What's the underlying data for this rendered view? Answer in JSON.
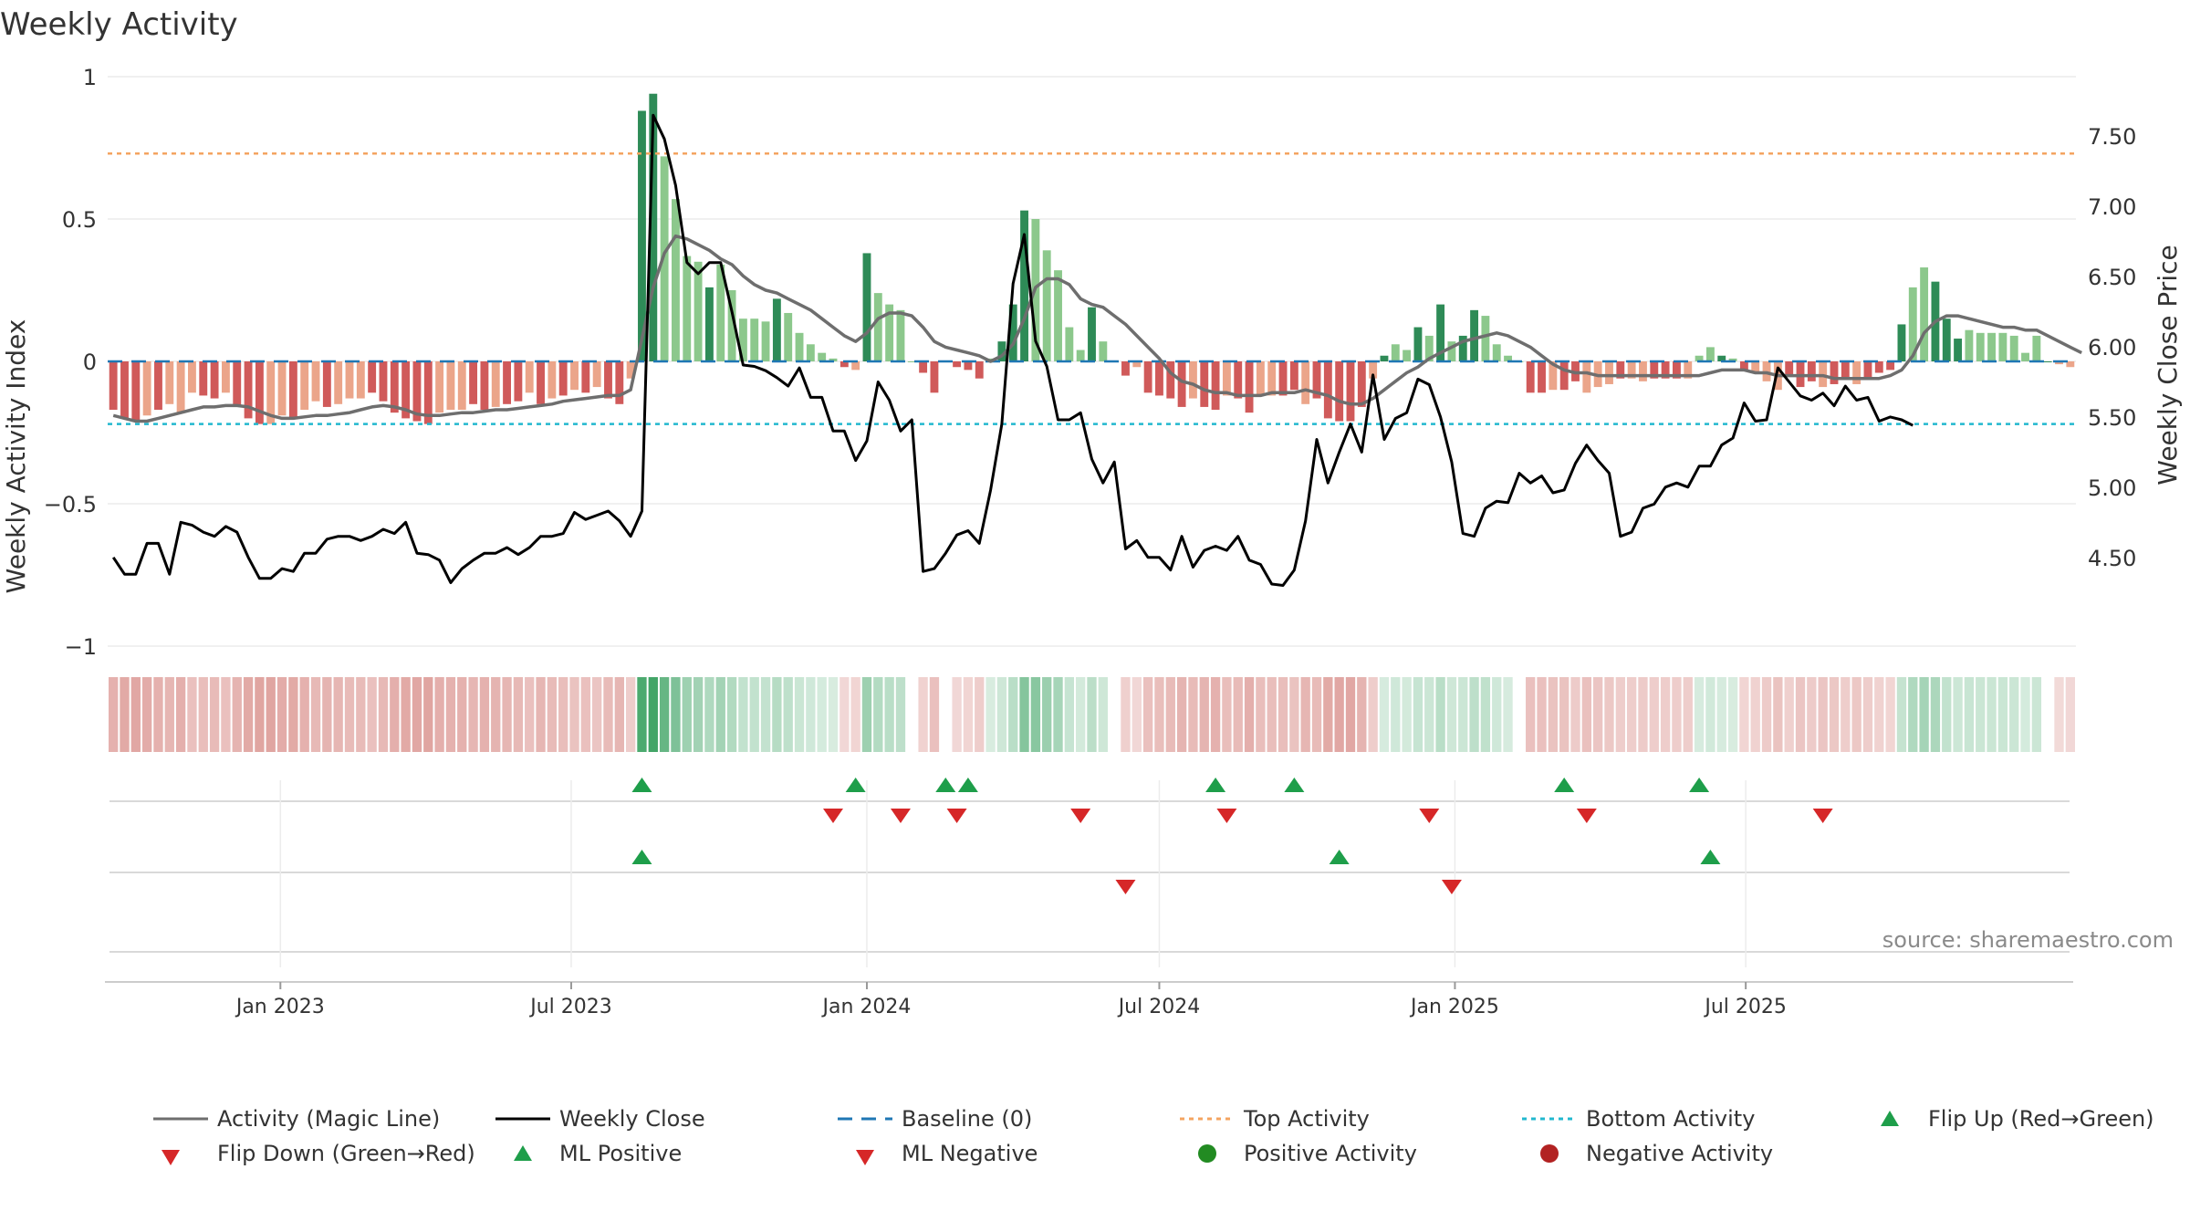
{
  "title": "Weekly Activity",
  "source": "source: sharemaestro.com",
  "colors": {
    "strong_green": "#2e8b57",
    "light_green": "#8cc88c",
    "strong_red": "#d05a5a",
    "light_red": "#eba58a",
    "magic_line": "#6e6e6e",
    "close_line": "#000000",
    "baseline": "#1f77b4",
    "top_line": "#f4a460",
    "bottom_line": "#22b8cf",
    "marker_up": "#1e9e4a",
    "marker_down": "#d62728"
  },
  "chart_data": {
    "type": "bar",
    "x_start": "2022-09-19",
    "x_step_days": 7,
    "left_axis": {
      "label": "Weekly Activity Index",
      "ylim": [
        -1,
        1
      ],
      "ticks": [
        "1",
        "0.5",
        "0",
        "−0.5",
        "−1"
      ],
      "tick_values": [
        1,
        0.5,
        0,
        -0.5,
        -1
      ]
    },
    "right_axis": {
      "label": "Weekly Close Price",
      "ylim": [
        4.05,
        7.95
      ],
      "ticks": [
        "7.50",
        "7.00",
        "6.50",
        "6.00",
        "5.50",
        "5.00",
        "4.50"
      ],
      "tick_values": [
        7.5,
        7.0,
        6.5,
        6.0,
        5.5,
        5.0,
        4.5
      ]
    },
    "x_ticks": {
      "labels": [
        "Jan 2023",
        "Jul 2023",
        "Jan 2024",
        "Jul 2024",
        "Jan 2025",
        "Jul 2025"
      ],
      "dates": [
        "2023-01-01",
        "2023-07-01",
        "2024-01-01",
        "2024-07-01",
        "2025-01-01",
        "2025-07-01"
      ]
    },
    "top_activity": 0.73,
    "bottom_activity": -0.22,
    "activity": [
      -0.17,
      -0.2,
      -0.21,
      -0.19,
      -0.17,
      -0.15,
      -0.18,
      -0.11,
      -0.12,
      -0.13,
      -0.11,
      -0.16,
      -0.2,
      -0.22,
      -0.22,
      -0.19,
      -0.2,
      -0.17,
      -0.14,
      -0.16,
      -0.15,
      -0.13,
      -0.13,
      -0.11,
      -0.14,
      -0.18,
      -0.2,
      -0.21,
      -0.22,
      -0.18,
      -0.17,
      -0.17,
      -0.15,
      -0.17,
      -0.16,
      -0.15,
      -0.14,
      -0.11,
      -0.15,
      -0.13,
      -0.12,
      -0.1,
      -0.11,
      -0.09,
      -0.13,
      -0.15,
      -0.06,
      0.88,
      0.94,
      0.72,
      0.57,
      0.37,
      0.35,
      0.26,
      0.34,
      0.25,
      0.15,
      0.15,
      0.14,
      0.22,
      0.17,
      0.1,
      0.06,
      0.03,
      0.01,
      -0.02,
      -0.03,
      0.38,
      0.24,
      0.2,
      0.18,
      0.0,
      -0.04,
      -0.11,
      0.0,
      -0.02,
      -0.03,
      -0.06,
      0.01,
      0.07,
      0.2,
      0.53,
      0.5,
      0.39,
      0.32,
      0.12,
      0.04,
      0.19,
      0.07,
      0.0,
      -0.05,
      -0.02,
      -0.11,
      -0.12,
      -0.13,
      -0.16,
      -0.13,
      -0.16,
      -0.17,
      -0.12,
      -0.13,
      -0.18,
      -0.12,
      -0.12,
      -0.12,
      -0.1,
      -0.15,
      -0.13,
      -0.2,
      -0.21,
      -0.21,
      -0.16,
      -0.06,
      0.02,
      0.06,
      0.04,
      0.12,
      0.09,
      0.2,
      0.07,
      0.09,
      0.18,
      0.16,
      0.06,
      0.02,
      0.0,
      -0.11,
      -0.11,
      -0.1,
      -0.1,
      -0.07,
      -0.11,
      -0.09,
      -0.08,
      -0.06,
      -0.06,
      -0.07,
      -0.06,
      -0.06,
      -0.06,
      -0.06,
      0.02,
      0.05,
      0.02,
      0.01,
      -0.03,
      -0.04,
      -0.07,
      -0.1,
      -0.05,
      -0.09,
      -0.07,
      -0.09,
      -0.08,
      -0.06,
      -0.08,
      -0.06,
      -0.04,
      -0.03,
      0.13,
      0.26,
      0.33,
      0.28,
      0.15,
      0.08,
      0.11,
      0.1,
      0.1,
      0.1,
      0.09,
      0.03,
      0.09,
      0.0,
      -0.01,
      -0.02
    ],
    "activity_strength": [
      1,
      1,
      1,
      0,
      1,
      0,
      0,
      0,
      1,
      1,
      0,
      1,
      1,
      1,
      0,
      0,
      1,
      0,
      0,
      1,
      0,
      0,
      0,
      1,
      1,
      1,
      1,
      1,
      1,
      0,
      0,
      0,
      1,
      1,
      0,
      1,
      1,
      0,
      1,
      0,
      1,
      0,
      1,
      0,
      1,
      1,
      0,
      1,
      1,
      0,
      0,
      0,
      0,
      1,
      0,
      0,
      0,
      0,
      0,
      1,
      0,
      0,
      0,
      0,
      0,
      1,
      0,
      1,
      0,
      0,
      0,
      0,
      1,
      1,
      0,
      1,
      1,
      1,
      0,
      1,
      1,
      1,
      0,
      0,
      0,
      0,
      0,
      1,
      0,
      1,
      1,
      0,
      1,
      1,
      1,
      1,
      0,
      1,
      1,
      0,
      1,
      1,
      0,
      0,
      1,
      1,
      0,
      1,
      1,
      1,
      1,
      1,
      0,
      1,
      0,
      0,
      1,
      0,
      1,
      0,
      1,
      1,
      0,
      0,
      0,
      0,
      1,
      1,
      0,
      1,
      1,
      0,
      0,
      0,
      1,
      0,
      0,
      1,
      1,
      1,
      0,
      0,
      0,
      1,
      0,
      1,
      0,
      0,
      0,
      1,
      1,
      1,
      0,
      1,
      1,
      0,
      1,
      1,
      1,
      1,
      0,
      0,
      1,
      1,
      1,
      0,
      0,
      0,
      0,
      0,
      0,
      0,
      1,
      0,
      0,
      0,
      1
    ],
    "magic_line": [
      -0.19,
      -0.2,
      -0.21,
      -0.21,
      -0.2,
      -0.19,
      -0.18,
      -0.17,
      -0.16,
      -0.16,
      -0.155,
      -0.155,
      -0.16,
      -0.175,
      -0.19,
      -0.2,
      -0.2,
      -0.195,
      -0.19,
      -0.19,
      -0.185,
      -0.18,
      -0.17,
      -0.16,
      -0.155,
      -0.16,
      -0.17,
      -0.185,
      -0.19,
      -0.19,
      -0.185,
      -0.18,
      -0.18,
      -0.175,
      -0.17,
      -0.17,
      -0.165,
      -0.16,
      -0.155,
      -0.15,
      -0.14,
      -0.135,
      -0.13,
      -0.125,
      -0.12,
      -0.12,
      -0.1,
      0.08,
      0.26,
      0.38,
      0.44,
      0.43,
      0.41,
      0.39,
      0.36,
      0.34,
      0.3,
      0.27,
      0.25,
      0.24,
      0.22,
      0.2,
      0.18,
      0.15,
      0.12,
      0.09,
      0.07,
      0.1,
      0.15,
      0.17,
      0.17,
      0.16,
      0.12,
      0.07,
      0.05,
      0.04,
      0.03,
      0.02,
      0.0,
      0.02,
      0.06,
      0.15,
      0.26,
      0.29,
      0.29,
      0.27,
      0.22,
      0.2,
      0.19,
      0.16,
      0.13,
      0.09,
      0.05,
      0.01,
      -0.04,
      -0.07,
      -0.08,
      -0.1,
      -0.11,
      -0.11,
      -0.12,
      -0.12,
      -0.12,
      -0.11,
      -0.11,
      -0.11,
      -0.1,
      -0.11,
      -0.12,
      -0.14,
      -0.15,
      -0.15,
      -0.13,
      -0.1,
      -0.07,
      -0.04,
      -0.02,
      0.01,
      0.03,
      0.05,
      0.07,
      0.08,
      0.09,
      0.1,
      0.09,
      0.07,
      0.05,
      0.02,
      -0.01,
      -0.03,
      -0.04,
      -0.04,
      -0.05,
      -0.05,
      -0.05,
      -0.05,
      -0.05,
      -0.05,
      -0.05,
      -0.05,
      -0.05,
      -0.05,
      -0.04,
      -0.03,
      -0.03,
      -0.03,
      -0.04,
      -0.04,
      -0.05,
      -0.05,
      -0.05,
      -0.05,
      -0.05,
      -0.06,
      -0.06,
      -0.06,
      -0.06,
      -0.06,
      -0.05,
      -0.03,
      0.02,
      0.1,
      0.14,
      0.16,
      0.16,
      0.15,
      0.14,
      0.13,
      0.12,
      0.12,
      0.11,
      0.11,
      0.09,
      0.07,
      0.05,
      0.03
    ],
    "weekly_close": [
      4.5,
      4.38,
      4.38,
      4.6,
      4.6,
      4.38,
      4.75,
      4.73,
      4.68,
      4.65,
      4.72,
      4.68,
      4.5,
      4.35,
      4.35,
      4.42,
      4.4,
      4.53,
      4.53,
      4.63,
      4.65,
      4.65,
      4.62,
      4.65,
      4.7,
      4.67,
      4.75,
      4.53,
      4.52,
      4.48,
      4.32,
      4.42,
      4.48,
      4.53,
      4.53,
      4.57,
      4.52,
      4.57,
      4.65,
      4.65,
      4.67,
      4.82,
      4.77,
      4.8,
      4.83,
      4.76,
      4.65,
      4.83,
      7.65,
      7.48,
      7.15,
      6.6,
      6.52,
      6.6,
      6.6,
      6.25,
      5.87,
      5.86,
      5.83,
      5.78,
      5.72,
      5.85,
      5.64,
      5.64,
      5.4,
      5.4,
      5.19,
      5.33,
      5.75,
      5.62,
      5.4,
      5.48,
      4.4,
      4.42,
      4.53,
      4.66,
      4.69,
      4.6,
      4.98,
      5.45,
      6.45,
      6.8,
      6.04,
      5.86,
      5.48,
      5.48,
      5.53,
      5.2,
      5.03,
      5.18,
      4.56,
      4.62,
      4.5,
      4.5,
      4.41,
      4.65,
      4.43,
      4.55,
      4.58,
      4.55,
      4.65,
      4.48,
      4.45,
      4.31,
      4.3,
      4.41,
      4.76,
      5.34,
      5.03,
      5.25,
      5.45,
      5.25,
      5.8,
      5.34,
      5.49,
      5.53,
      5.77,
      5.73,
      5.5,
      5.18,
      4.67,
      4.65,
      4.85,
      4.9,
      4.89,
      5.1,
      5.03,
      5.08,
      4.96,
      4.98,
      5.17,
      5.3,
      5.19,
      5.1,
      4.65,
      4.68,
      4.85,
      4.88,
      5.0,
      5.03,
      5.0,
      5.15,
      5.15,
      5.3,
      5.35,
      5.6,
      5.47,
      5.48,
      5.85,
      5.75,
      5.65,
      5.62,
      5.67,
      5.58,
      5.72,
      5.62,
      5.64,
      5.47,
      5.5,
      5.48,
      5.44
    ],
    "flip_up": [
      47,
      66,
      74,
      76,
      98,
      105,
      129,
      141
    ],
    "flip_down": [
      64,
      70,
      75,
      86,
      99,
      117,
      131,
      152
    ],
    "ml_positive": [
      47,
      109,
      142
    ],
    "ml_negative": [
      90,
      119
    ],
    "legend": {
      "magic_line": "Activity (Magic Line)",
      "weekly_close": "Weekly Close",
      "baseline": "Baseline (0)",
      "top": "Top Activity",
      "bottom": "Bottom Activity",
      "flip_up": "Flip Up (Red→Green)",
      "flip_down": "Flip Down (Green→Red)",
      "ml_positive": "ML Positive",
      "ml_negative": "ML Negative",
      "positive": "Positive Activity",
      "negative": "Negative Activity"
    }
  }
}
